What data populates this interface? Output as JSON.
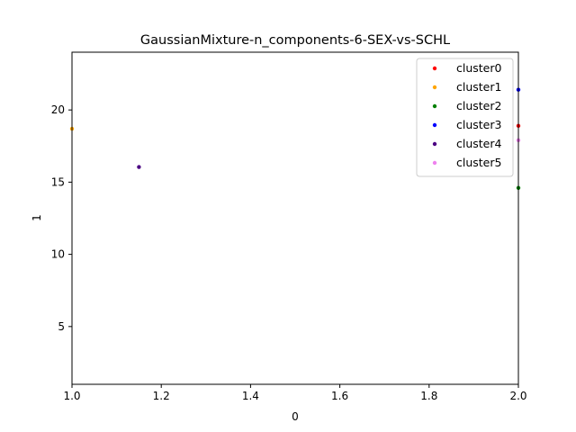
{
  "chart_data": {
    "type": "scatter",
    "title": "GaussianMixture-n_components-6-SEX-vs-SCHL",
    "xlabel": "0",
    "ylabel": "1",
    "xlim": [
      1.0,
      2.0
    ],
    "ylim": [
      1.0,
      24.0
    ],
    "x_ticks": [
      1.0,
      1.2,
      1.4,
      1.6,
      1.8,
      2.0
    ],
    "x_tick_labels": [
      "1.0",
      "1.2",
      "1.4",
      "1.6",
      "1.8",
      "2.0"
    ],
    "y_ticks": [
      5,
      10,
      15,
      20
    ],
    "y_tick_labels": [
      "5",
      "10",
      "15",
      "20"
    ],
    "grid": false,
    "legend_position": "top-right",
    "series": [
      {
        "name": "cluster0",
        "color": "#ff0000",
        "points": [
          [
            2.0,
            18.9
          ]
        ]
      },
      {
        "name": "cluster1",
        "color": "#ffa500",
        "points": [
          [
            1.0,
            18.7
          ]
        ]
      },
      {
        "name": "cluster2",
        "color": "#008000",
        "points": [
          [
            2.0,
            14.6
          ]
        ]
      },
      {
        "name": "cluster3",
        "color": "#0000ff",
        "points": [
          [
            2.0,
            21.4
          ]
        ]
      },
      {
        "name": "cluster4",
        "color": "#4b0082",
        "points": [
          [
            1.15,
            16.05
          ]
        ]
      },
      {
        "name": "cluster5",
        "color": "#ee82ee",
        "points": [
          [
            2.0,
            17.9
          ]
        ]
      }
    ]
  }
}
